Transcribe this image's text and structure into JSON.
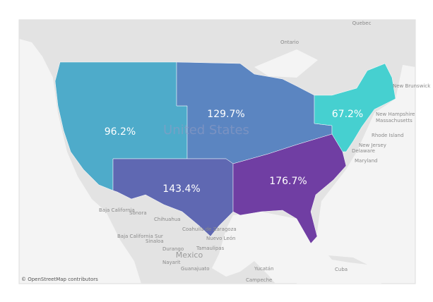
{
  "map": {
    "regions": {
      "values": [
        96.2,
        129.7,
        143.4,
        176.7,
        67.2
      ],
      "value_labels": [
        "96.2%",
        "129.7%",
        "143.4%",
        "176.7%",
        "67.2%"
      ],
      "colors": [
        "#47a9c9",
        "#5480c0",
        "#5862b0",
        "#6a36a0",
        "#3ecfcf"
      ]
    },
    "places": {
      "country_us": "United States",
      "country_mexico": "Mexico",
      "ontario": "Ontario",
      "quebec": "Quebec",
      "new_brunswick": "New Brunswick",
      "new_hampshire": "New Hampshire",
      "massachusetts": "Massachusetts",
      "rhode_island": "Rhode Island",
      "new_jersey": "New Jersey",
      "delaware": "Delaware",
      "maryland": "Maryland",
      "baja_california": "Baja California",
      "sonora": "Sonora",
      "chihuahua": "Chihuahua",
      "coahuila": "Coahuila de Zaragoza",
      "baja_california_sur": "Baja California Sur",
      "sinaloa": "Sinaloa",
      "nuevo_leon": "Nuevo León",
      "tamaulipas": "Tamaulipas",
      "durango": "Durango",
      "nayarit": "Nayarit",
      "guanajuato": "Guanajuato",
      "yucatan": "Yucatán",
      "campeche": "Campeche",
      "cuba": "Cuba"
    },
    "attribution": "© OpenStreetMap contributors"
  }
}
